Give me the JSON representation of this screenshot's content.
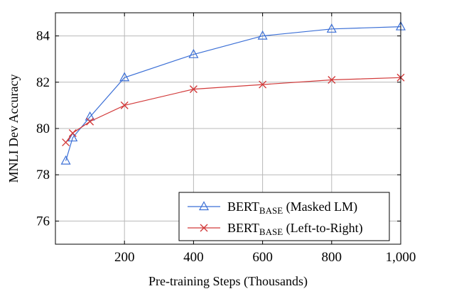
{
  "chart_data": {
    "type": "line",
    "xlabel": "Pre-training Steps (Thousands)",
    "ylabel": "MNLI Dev Accuracy",
    "xlim": [
      0,
      1000
    ],
    "ylim": [
      75,
      85
    ],
    "x_ticks": [
      200,
      400,
      600,
      800,
      1000
    ],
    "x_tick_labels": [
      "200",
      "400",
      "600",
      "800",
      "1,000"
    ],
    "y_ticks": [
      76,
      78,
      80,
      82,
      84
    ],
    "y_tick_labels": [
      "76",
      "78",
      "80",
      "82",
      "84"
    ],
    "grid": true,
    "legend_position": "bottom-right",
    "series": [
      {
        "name": "BERT",
        "name_subscript": "BASE",
        "name_suffix": " (Masked LM)",
        "color": "#3b6fd6",
        "marker": "triangle",
        "x": [
          30,
          50,
          100,
          200,
          400,
          600,
          800,
          1000
        ],
        "y": [
          78.6,
          79.6,
          80.5,
          82.2,
          83.2,
          84.0,
          84.3,
          84.4
        ]
      },
      {
        "name": "BERT",
        "name_subscript": "BASE",
        "name_suffix": " (Left-to-Right)",
        "color": "#d23a3a",
        "marker": "x",
        "x": [
          30,
          50,
          100,
          200,
          400,
          600,
          800,
          1000
        ],
        "y": [
          79.4,
          79.8,
          80.3,
          81.0,
          81.7,
          81.9,
          82.1,
          82.2
        ]
      }
    ]
  }
}
